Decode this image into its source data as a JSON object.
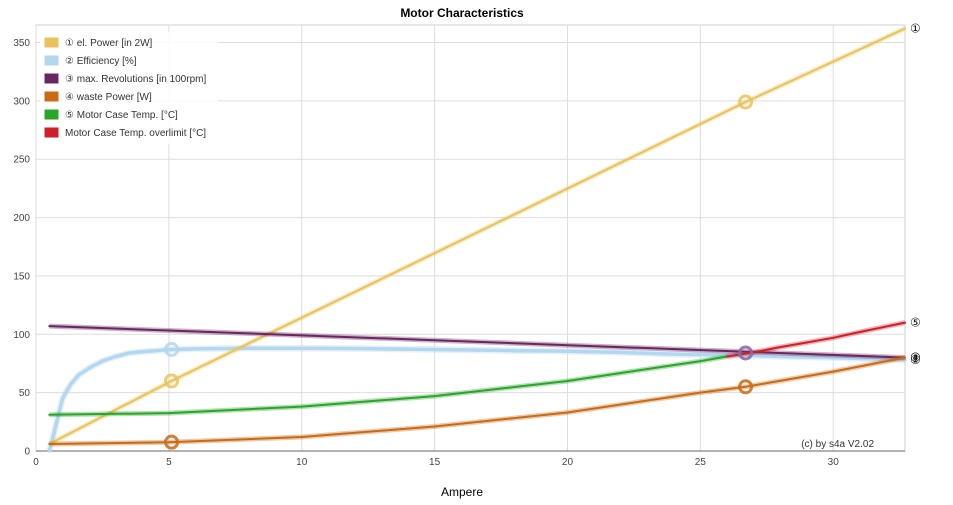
{
  "chart_data": {
    "type": "line",
    "title": "Motor Characteristics",
    "xlabel": "Ampere",
    "ylabel": "",
    "xlim": [
      0,
      32.7
    ],
    "ylim": [
      0,
      365
    ],
    "xticks": [
      0,
      5,
      10,
      15,
      20,
      25,
      30
    ],
    "yticks": [
      0,
      50,
      100,
      150,
      200,
      250,
      300,
      350
    ],
    "grid": true,
    "legend_position": "top-left",
    "credit": "(c) by s4a  V2.02",
    "series": [
      {
        "name": "① el. Power [in 2W]",
        "color": "#e8c25a",
        "end_marker": "①",
        "x": [
          0.5,
          5.1,
          26.7,
          32.7
        ],
        "y": [
          6,
          60,
          299,
          362
        ],
        "markers_at": [
          5.1,
          26.7
        ]
      },
      {
        "name": "② Efficiency [%]",
        "color": "#b3d7ee",
        "end_marker": "②",
        "x": [
          0.5,
          0.6,
          0.8,
          1.0,
          1.3,
          1.6,
          2.0,
          2.5,
          3.0,
          3.5,
          4.0,
          5.1,
          6,
          8,
          10,
          12,
          15,
          18,
          20,
          22,
          24,
          26.7,
          28,
          30,
          32.7
        ],
        "y": [
          0,
          8,
          27,
          45,
          57,
          65,
          71,
          77,
          81,
          84,
          85,
          87,
          87.5,
          88,
          88,
          87.8,
          87,
          86,
          85.5,
          84.5,
          83,
          82,
          81,
          80,
          78
        ],
        "markers_at": [
          5.1
        ]
      },
      {
        "name": "③ max. Revolutions [in 100rpm]",
        "color": "#6b2560",
        "end_marker": "③",
        "x": [
          0.5,
          32.7
        ],
        "y": [
          107,
          80
        ],
        "markers_at": []
      },
      {
        "name": "④ waste Power [W]",
        "color": "#c96a14",
        "end_marker": "④",
        "x": [
          0.5,
          5,
          10,
          15,
          20,
          25,
          26.7,
          30,
          32.7
        ],
        "y": [
          6,
          7.5,
          12,
          21,
          33,
          50,
          55,
          68,
          80
        ],
        "markers_at": [
          5.1,
          26.7
        ]
      },
      {
        "name": "⑤ Motor Case Temp. [°C]",
        "color": "#2aa52a",
        "end_marker": "",
        "x": [
          0.5,
          5,
          10,
          15,
          20,
          25,
          26
        ],
        "y": [
          31,
          32.5,
          38,
          47,
          60,
          77,
          81
        ],
        "markers_at": []
      },
      {
        "name": "Motor Case Temp. overlimit [°C]",
        "color": "#cf1f2a",
        "end_marker": "⑤",
        "x": [
          26,
          27,
          28,
          29,
          30,
          31,
          32.7
        ],
        "y": [
          81,
          84.5,
          89,
          93,
          97,
          102,
          110
        ],
        "markers_at": []
      }
    ],
    "crossing_marker": {
      "x": 26.7,
      "y": 84,
      "color": "#8a6aa6"
    }
  }
}
